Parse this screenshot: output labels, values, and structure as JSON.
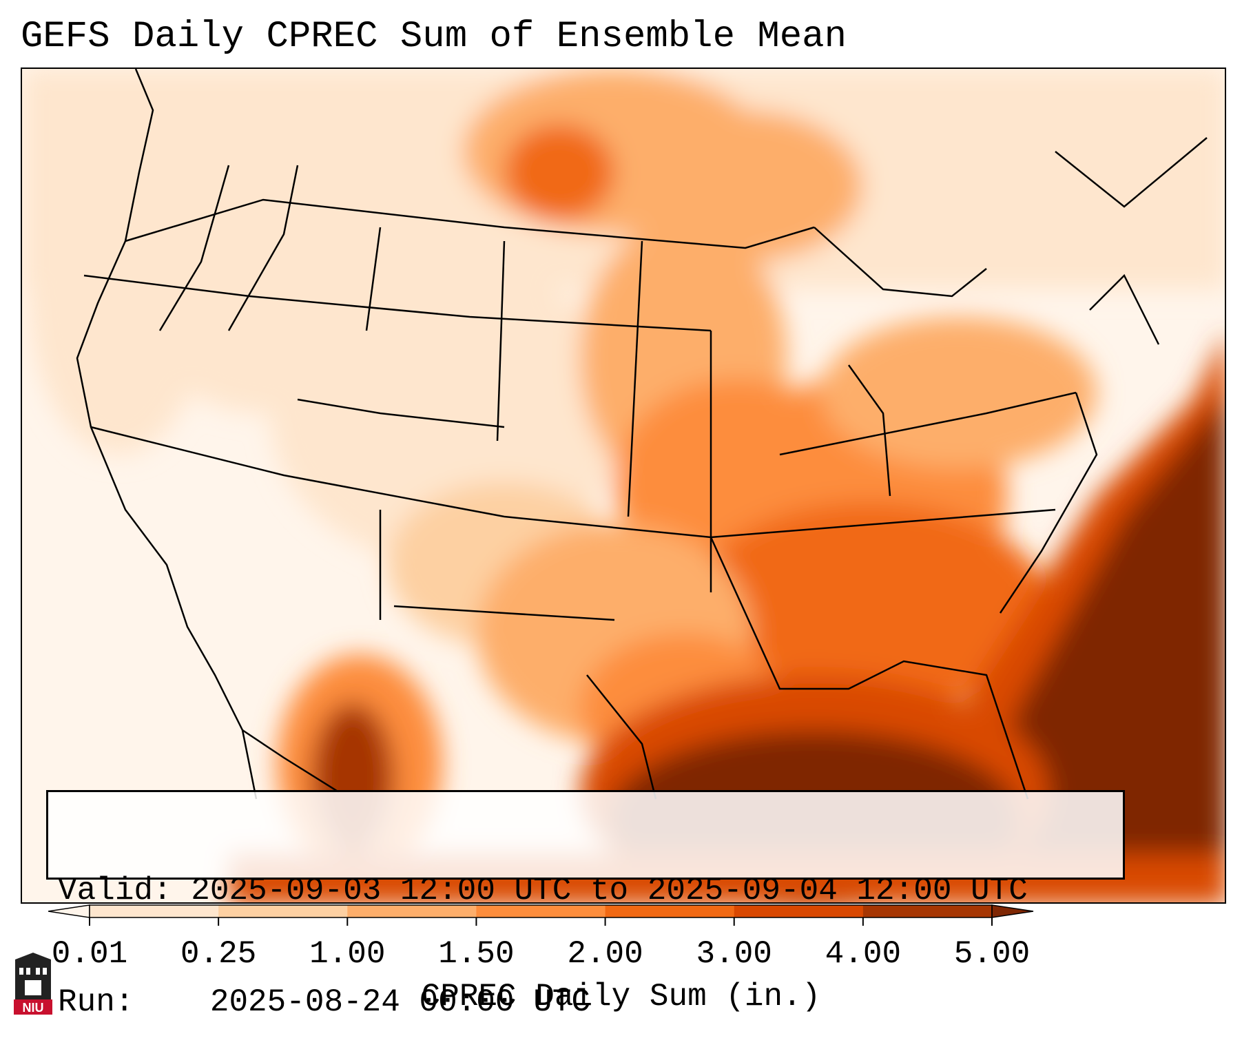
{
  "title": "GEFS Daily CPREC Sum of Ensemble Mean",
  "info": {
    "valid_label": "Valid:",
    "valid_value": "2025-09-03 12:00 UTC to 2025-09-04 12:00 UTC",
    "run_label": "Run:",
    "run_value": "2025-08-24 00:00 UTC"
  },
  "colorbar": {
    "label": "CPREC Daily Sum (in.)",
    "ticks": [
      "0.01",
      "0.25",
      "1.00",
      "1.50",
      "2.00",
      "3.00",
      "4.00",
      "5.00"
    ],
    "colors": [
      "#fee6ce",
      "#fdd0a2",
      "#fdae6b",
      "#fd8d3c",
      "#f16913",
      "#d94801",
      "#a63603"
    ],
    "under_color": "#fff5eb",
    "over_color": "#7f2704"
  },
  "logo": {
    "text": "NIU",
    "color": "#c8102e"
  }
}
